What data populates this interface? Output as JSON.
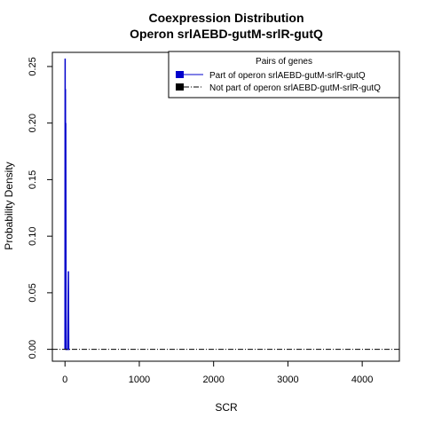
{
  "chart_data": {
    "type": "line",
    "title": "Coexpression Distribution",
    "subtitle": "Operon srlAEBD-gutM-srlR-gutQ",
    "xlabel": "SCR",
    "ylabel": "Probability Density",
    "xlim": [
      -170,
      4500
    ],
    "ylim": [
      -0.0105,
      0.2625
    ],
    "xticks": [
      0,
      1000,
      2000,
      3000,
      4000
    ],
    "yticks": [
      0.0,
      0.05,
      0.1,
      0.15,
      0.2,
      0.25
    ],
    "ytick_labels": [
      "0.00",
      "0.05",
      "0.10",
      "0.15",
      "0.20",
      "0.25"
    ],
    "grid": false,
    "legend": {
      "title": "Pairs of genes",
      "placement": "top-right"
    },
    "series": [
      {
        "name": "Part of operon srlAEBD-gutM-srlR-gutQ",
        "color": "#0000cc",
        "style": "solid",
        "x": [
          0,
          2,
          4,
          6,
          8,
          10,
          14,
          18,
          22,
          30,
          38,
          46,
          50,
          54,
          60
        ],
        "y": [
          0.0,
          0.257,
          0.0,
          0.23,
          0.0,
          0.2,
          0.0,
          0.0,
          0.0,
          0.0,
          0.0,
          0.069,
          0.0,
          0.0,
          0.0
        ]
      },
      {
        "name": "Not part of operon srlAEBD-gutM-srlR-gutQ",
        "color": "#000000",
        "style": "dashdot",
        "x": [
          -170,
          0,
          100,
          500,
          1000,
          2000,
          3000,
          4000,
          4500
        ],
        "y": [
          0.0,
          0.0,
          0.0,
          0.0,
          0.0,
          0.0,
          0.0,
          0.0,
          0.0
        ]
      }
    ]
  }
}
